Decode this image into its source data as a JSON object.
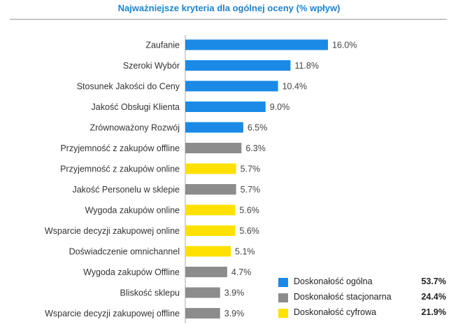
{
  "chart_data": {
    "type": "bar",
    "orientation": "horizontal",
    "title": "Najważniejsze kryteria dla ogólnej oceny (% wpływ)",
    "categories": [
      "Zaufanie",
      "Szeroki Wybór",
      "Stosunek Jakości do Ceny",
      "Jakość Obsługi Klienta",
      "Zrównoważony Rozwój",
      "Przyjemność z zakupów offline",
      "Przyjemność z zakupów online",
      "Jakość Personelu w sklepie",
      "Wygoda zakupów online",
      "Wsparcie decyzji zakupowej online",
      "Doświadczenie omnichannel",
      "Wygoda zakupów Offline",
      "Bliskość sklepu",
      "Wsparcie decyzji zakupowej offline"
    ],
    "values": [
      16.0,
      11.8,
      10.4,
      9.0,
      6.5,
      6.3,
      5.7,
      5.7,
      5.6,
      5.6,
      5.1,
      4.7,
      3.9,
      3.9
    ],
    "value_labels": [
      "16.0%",
      "11.8%",
      "10.4%",
      "9.0%",
      "6.5%",
      "6.3%",
      "5.7%",
      "5.7%",
      "5.6%",
      "5.6%",
      "5.1%",
      "4.7%",
      "3.9%",
      "3.9%"
    ],
    "groups": [
      "ogolna",
      "ogolna",
      "ogolna",
      "ogolna",
      "ogolna",
      "stacjonarna",
      "cyfrowa",
      "stacjonarna",
      "cyfrowa",
      "cyfrowa",
      "cyfrowa",
      "stacjonarna",
      "stacjonarna",
      "stacjonarna"
    ],
    "xlim": [
      0,
      16.0
    ],
    "grid": false,
    "legend_position": "bottom-right",
    "legend": [
      {
        "key": "ogolna",
        "label": "Doskonałość ogólna",
        "value": "53.7%",
        "color": "#1a8ae6"
      },
      {
        "key": "stacjonarna",
        "label": "Doskonałość stacjonarna",
        "value": "24.4%",
        "color": "#8c8c8c"
      },
      {
        "key": "cyfrowa",
        "label": "Doskonałość cyfrowa",
        "value": "21.9%",
        "color": "#ffe100"
      }
    ]
  }
}
